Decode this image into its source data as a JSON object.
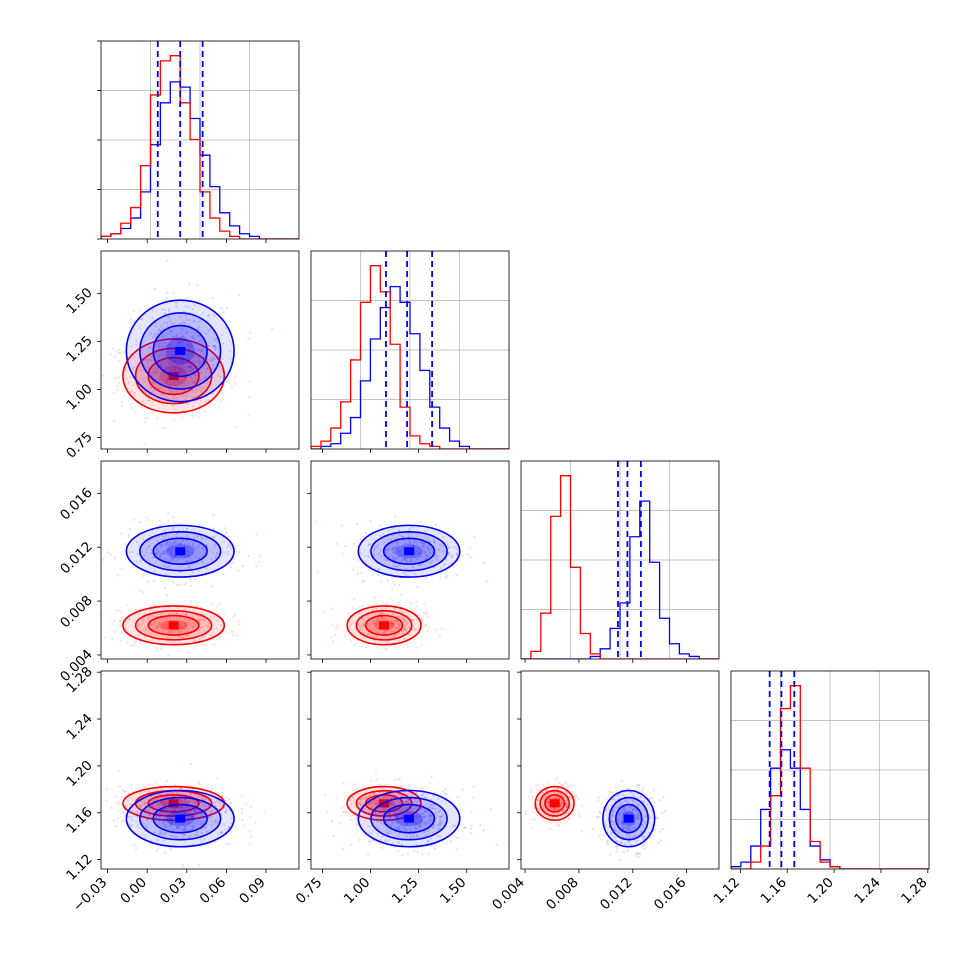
{
  "chart_data": {
    "type": "corner",
    "description_colors": {
      "series_a": "#ff0000",
      "series_b": "#0000ff",
      "quantile_line": "#0000ff"
    },
    "series": [
      {
        "name": "red",
        "color": "#ff0000",
        "params": [
          {
            "mean": 0.02,
            "sd": 0.016
          },
          {
            "mean": 1.07,
            "sd": 0.08
          },
          {
            "mean": 0.0062,
            "sd": 0.0006
          },
          {
            "mean": 1.168,
            "sd": 0.006
          }
        ]
      },
      {
        "name": "blue",
        "color": "#0000ff",
        "params": [
          {
            "mean": 0.025,
            "sd": 0.017
          },
          {
            "mean": 1.2,
            "sd": 0.11
          },
          {
            "mean": 0.0117,
            "sd": 0.0008
          },
          {
            "mean": 1.155,
            "sd": 0.01
          }
        ]
      }
    ],
    "quantiles": [
      [
        0.008,
        0.025,
        0.042
      ],
      [
        1.08,
        1.19,
        1.32
      ],
      [
        0.0109,
        0.0116,
        0.0126
      ],
      [
        1.145,
        1.155,
        1.166
      ]
    ],
    "ranges": [
      [
        -0.035,
        0.115
      ],
      [
        0.69,
        1.72
      ],
      [
        0.0037,
        0.0184
      ],
      [
        1.112,
        1.281
      ]
    ],
    "ticks": [
      {
        "values": [
          -0.03,
          0.0,
          0.03,
          0.06,
          0.09
        ],
        "labels": [
          "−0.03",
          "0.00",
          "0.03",
          "0.06",
          "0.09"
        ]
      },
      {
        "values": [
          0.75,
          1.0,
          1.25,
          1.5
        ],
        "labels": [
          "0.75",
          "1.00",
          "1.25",
          "1.50"
        ]
      },
      {
        "values": [
          0.004,
          0.008,
          0.012,
          0.016
        ],
        "labels": [
          "0.004",
          "0.008",
          "0.012",
          "0.016"
        ]
      },
      {
        "values": [
          1.12,
          1.16,
          1.2,
          1.24,
          1.28
        ],
        "labels": [
          "1.12",
          "1.16",
          "1.20",
          "1.24",
          "1.28"
        ]
      }
    ],
    "histograms": [
      {
        "bins": 20,
        "red": [
          1,
          2,
          6,
          12,
          28,
          55,
          68,
          70,
          52,
          38,
          18,
          8,
          3,
          1,
          0,
          0,
          0,
          0,
          0,
          0
        ],
        "blue": [
          1,
          2,
          4,
          8,
          18,
          36,
          52,
          60,
          58,
          46,
          32,
          20,
          10,
          5,
          2,
          1,
          0,
          0,
          0,
          0
        ]
      },
      {
        "bins": 20,
        "red": [
          1,
          3,
          8,
          18,
          34,
          56,
          70,
          60,
          40,
          16,
          5,
          2,
          1,
          0,
          0,
          0,
          0,
          0,
          0,
          0
        ],
        "blue": [
          0,
          1,
          2,
          6,
          12,
          26,
          42,
          54,
          62,
          56,
          44,
          30,
          16,
          8,
          3,
          1,
          0,
          0,
          0,
          0
        ]
      },
      {
        "bins": 20,
        "red": [
          0,
          3,
          18,
          56,
          72,
          36,
          10,
          2,
          0,
          0,
          0,
          0,
          0,
          0,
          0,
          0,
          0,
          0,
          0,
          0
        ],
        "blue": [
          0,
          0,
          0,
          0,
          0,
          0,
          0,
          1,
          4,
          12,
          22,
          48,
          62,
          38,
          16,
          6,
          2,
          1,
          0,
          0
        ]
      },
      {
        "bins": 20,
        "red": [
          0,
          0,
          3,
          10,
          32,
          70,
          80,
          44,
          12,
          3,
          1,
          0,
          0,
          0,
          0,
          0,
          0,
          0,
          0,
          0
        ],
        "blue": [
          1,
          3,
          10,
          26,
          44,
          52,
          44,
          26,
          10,
          4,
          1,
          0,
          0,
          0,
          0,
          0,
          0,
          0,
          0,
          0
        ]
      }
    ]
  }
}
